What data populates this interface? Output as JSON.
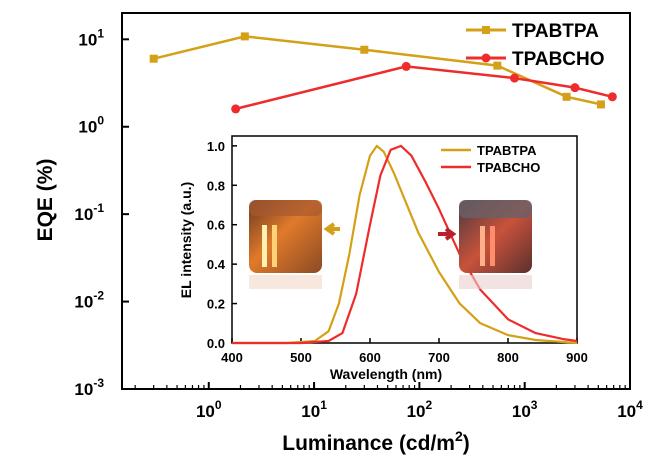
{
  "chart_data": [
    {
      "type": "line",
      "title": "",
      "xlabel": "Luminance (cd/m2)",
      "ylabel": "EQE (%)",
      "xscale": "log",
      "yscale": "log",
      "xlim": [
        0.15,
        10000
      ],
      "ylim": [
        0.001,
        20
      ],
      "xticks": [
        {
          "value": 1,
          "base": "10",
          "exp": "0"
        },
        {
          "value": 10,
          "base": "10",
          "exp": "1"
        },
        {
          "value": 100,
          "base": "10",
          "exp": "2"
        },
        {
          "value": 1000,
          "base": "10",
          "exp": "3"
        },
        {
          "value": 10000,
          "base": "10",
          "exp": "4"
        }
      ],
      "yticks": [
        {
          "value": 10,
          "base": "10",
          "exp": "1"
        },
        {
          "value": 1,
          "base": "10",
          "exp": "0"
        },
        {
          "value": 0.1,
          "base": "10",
          "exp": "-1"
        },
        {
          "value": 0.01,
          "base": "10",
          "exp": "-2"
        },
        {
          "value": 0.001,
          "base": "10",
          "exp": "-3"
        }
      ],
      "legend_position": "top-right",
      "grid": false,
      "series": [
        {
          "name": "TPABTPA",
          "color": "#D4A017",
          "x": [
            0.3,
            2.2,
            30,
            550,
            2500,
            5300
          ],
          "y": [
            6.0,
            10.8,
            7.6,
            5.0,
            2.2,
            1.8
          ]
        },
        {
          "name": "TPABCHO",
          "color": "#EE2C2C",
          "x": [
            1.8,
            75,
            800,
            3000,
            6800
          ],
          "y": [
            1.6,
            4.9,
            3.6,
            2.8,
            2.2
          ]
        }
      ]
    },
    {
      "type": "line",
      "title": "",
      "xlabel": "Wavelength (nm)",
      "ylabel": "EL  intensity (a.u.)",
      "xlim": [
        400,
        900
      ],
      "ylim": [
        0,
        1.05
      ],
      "xticks": [
        400,
        500,
        600,
        700,
        800,
        900
      ],
      "yticks": [
        0.0,
        0.2,
        0.4,
        0.6,
        0.8,
        1.0
      ],
      "legend_position": "top-right",
      "grid": false,
      "series": [
        {
          "name": "TPABTPA",
          "color": "#D4A017",
          "x": [
            400,
            480,
            520,
            540,
            555,
            570,
            585,
            600,
            610,
            620,
            635,
            650,
            670,
            700,
            730,
            760,
            800,
            840,
            880,
            900
          ],
          "y": [
            0,
            0,
            0.01,
            0.06,
            0.2,
            0.45,
            0.75,
            0.95,
            1.0,
            0.97,
            0.86,
            0.73,
            0.56,
            0.36,
            0.2,
            0.1,
            0.04,
            0.015,
            0.005,
            0
          ]
        },
        {
          "name": "TPABCHO",
          "color": "#EE2C2C",
          "x": [
            400,
            500,
            540,
            560,
            580,
            600,
            615,
            630,
            645,
            660,
            680,
            700,
            730,
            760,
            800,
            840,
            880,
            900
          ],
          "y": [
            0,
            0,
            0.01,
            0.05,
            0.25,
            0.6,
            0.85,
            0.98,
            1.0,
            0.95,
            0.82,
            0.68,
            0.45,
            0.27,
            0.12,
            0.05,
            0.02,
            0.01
          ]
        }
      ],
      "annotations": [
        {
          "type": "photo",
          "side": "left",
          "arrow_color": "#D4A017"
        },
        {
          "type": "photo",
          "side": "right",
          "arrow_color": "#B8202A"
        }
      ]
    }
  ]
}
